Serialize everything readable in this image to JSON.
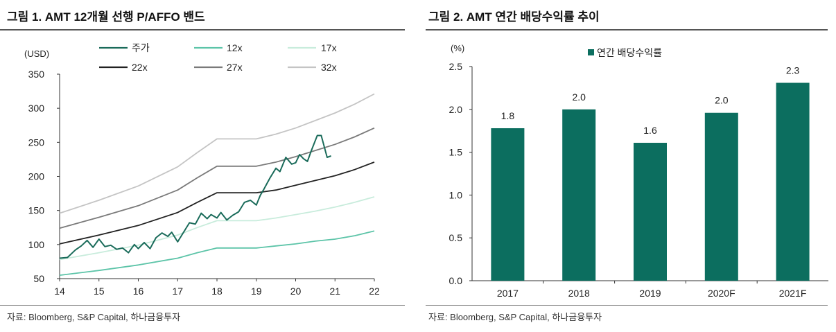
{
  "colors": {
    "price": "#1a6b5a",
    "band12": "#5cc4a8",
    "band17": "#c8ecdc",
    "band22": "#222222",
    "band27": "#7a7a7a",
    "band32": "#c4c4c4",
    "bar": "#0c6e5f"
  },
  "left": {
    "title": "그림 1. AMT 12개월 선행 P/AFFO 밴드",
    "source": "자료: Bloomberg, S&P Capital, 하나금융투자",
    "chart_data": {
      "type": "line",
      "yunit": "(USD)",
      "ylim": [
        50,
        350
      ],
      "yticks": [
        "350",
        "300",
        "250",
        "200",
        "150",
        "100",
        "50"
      ],
      "xlim": [
        14,
        22
      ],
      "xticks": [
        "14",
        "15",
        "16",
        "17",
        "18",
        "19",
        "20",
        "21",
        "22"
      ],
      "legend": [
        "주가",
        "12x",
        "17x",
        "22x",
        "27x",
        "32x"
      ],
      "series": [
        {
          "name": "12x",
          "x": [
            14,
            15,
            16,
            17,
            17.5,
            18,
            18.5,
            19,
            19.5,
            20,
            20.5,
            21,
            21.5,
            22
          ],
          "values": [
            55,
            62,
            70,
            80,
            88,
            95,
            95,
            95,
            98,
            101,
            105,
            108,
            113,
            120
          ]
        },
        {
          "name": "17x",
          "x": [
            14,
            15,
            16,
            17,
            17.5,
            18,
            18.5,
            19,
            19.5,
            20,
            20.5,
            21,
            21.5,
            22
          ],
          "values": [
            78,
            88,
            99,
            114,
            125,
            135,
            135,
            135,
            139,
            144,
            149,
            155,
            162,
            170
          ]
        },
        {
          "name": "22x",
          "x": [
            14,
            15,
            16,
            17,
            17.5,
            18,
            18.5,
            19,
            19.5,
            20,
            20.5,
            21,
            21.5,
            22
          ],
          "values": [
            101,
            114,
            128,
            147,
            162,
            176,
            176,
            176,
            180,
            187,
            194,
            201,
            210,
            221
          ]
        },
        {
          "name": "27x",
          "x": [
            14,
            15,
            16,
            17,
            17.5,
            18,
            18.5,
            19,
            19.5,
            20,
            20.5,
            21,
            21.5,
            22
          ],
          "values": [
            124,
            140,
            157,
            180,
            198,
            215,
            215,
            215,
            221,
            229,
            238,
            247,
            258,
            271
          ]
        },
        {
          "name": "32x",
          "x": [
            14,
            15,
            16,
            17,
            17.5,
            18,
            18.5,
            19,
            19.5,
            20,
            20.5,
            21,
            21.5,
            22
          ],
          "values": [
            146,
            165,
            186,
            214,
            235,
            255,
            255,
            255,
            262,
            271,
            282,
            293,
            306,
            321
          ]
        },
        {
          "name": "주가",
          "x": [
            14.0,
            14.2,
            14.4,
            14.55,
            14.7,
            14.85,
            15.0,
            15.15,
            15.3,
            15.45,
            15.6,
            15.75,
            15.9,
            16.0,
            16.15,
            16.3,
            16.45,
            16.6,
            16.75,
            16.85,
            17.0,
            17.15,
            17.3,
            17.45,
            17.6,
            17.75,
            17.85,
            18.0,
            18.1,
            18.25,
            18.4,
            18.55,
            18.7,
            18.85,
            19.0,
            19.1,
            19.2,
            19.35,
            19.5,
            19.6,
            19.75,
            19.9,
            20.0,
            20.1,
            20.2,
            20.3,
            20.4,
            20.55,
            20.65,
            20.8,
            20.9
          ],
          "values": [
            80,
            81,
            92,
            98,
            106,
            96,
            108,
            97,
            99,
            93,
            95,
            88,
            100,
            94,
            103,
            94,
            110,
            117,
            112,
            118,
            104,
            118,
            132,
            130,
            146,
            138,
            144,
            139,
            147,
            136,
            143,
            148,
            162,
            165,
            158,
            172,
            182,
            198,
            212,
            207,
            228,
            218,
            220,
            232,
            226,
            222,
            238,
            260,
            260,
            228,
            230
          ]
        }
      ]
    }
  },
  "right": {
    "title": "그림 2. AMT 연간 배당수익률 추이",
    "source": "자료: Bloomberg, S&P Capital, 하나금융투자",
    "chart_data": {
      "type": "bar",
      "yunit": "(%)",
      "ylim": [
        0,
        2.5
      ],
      "yticks": [
        "2.5",
        "2.0",
        "1.5",
        "1.0",
        "0.5",
        "0.0"
      ],
      "legend": "연간 배당수익률",
      "categories": [
        "2017",
        "2018",
        "2019",
        "2020F",
        "2021F"
      ],
      "values": [
        1.78,
        2.0,
        1.61,
        1.96,
        2.31
      ],
      "labels": [
        "1.8",
        "2.0",
        "1.6",
        "2.0",
        "2.3"
      ]
    }
  }
}
